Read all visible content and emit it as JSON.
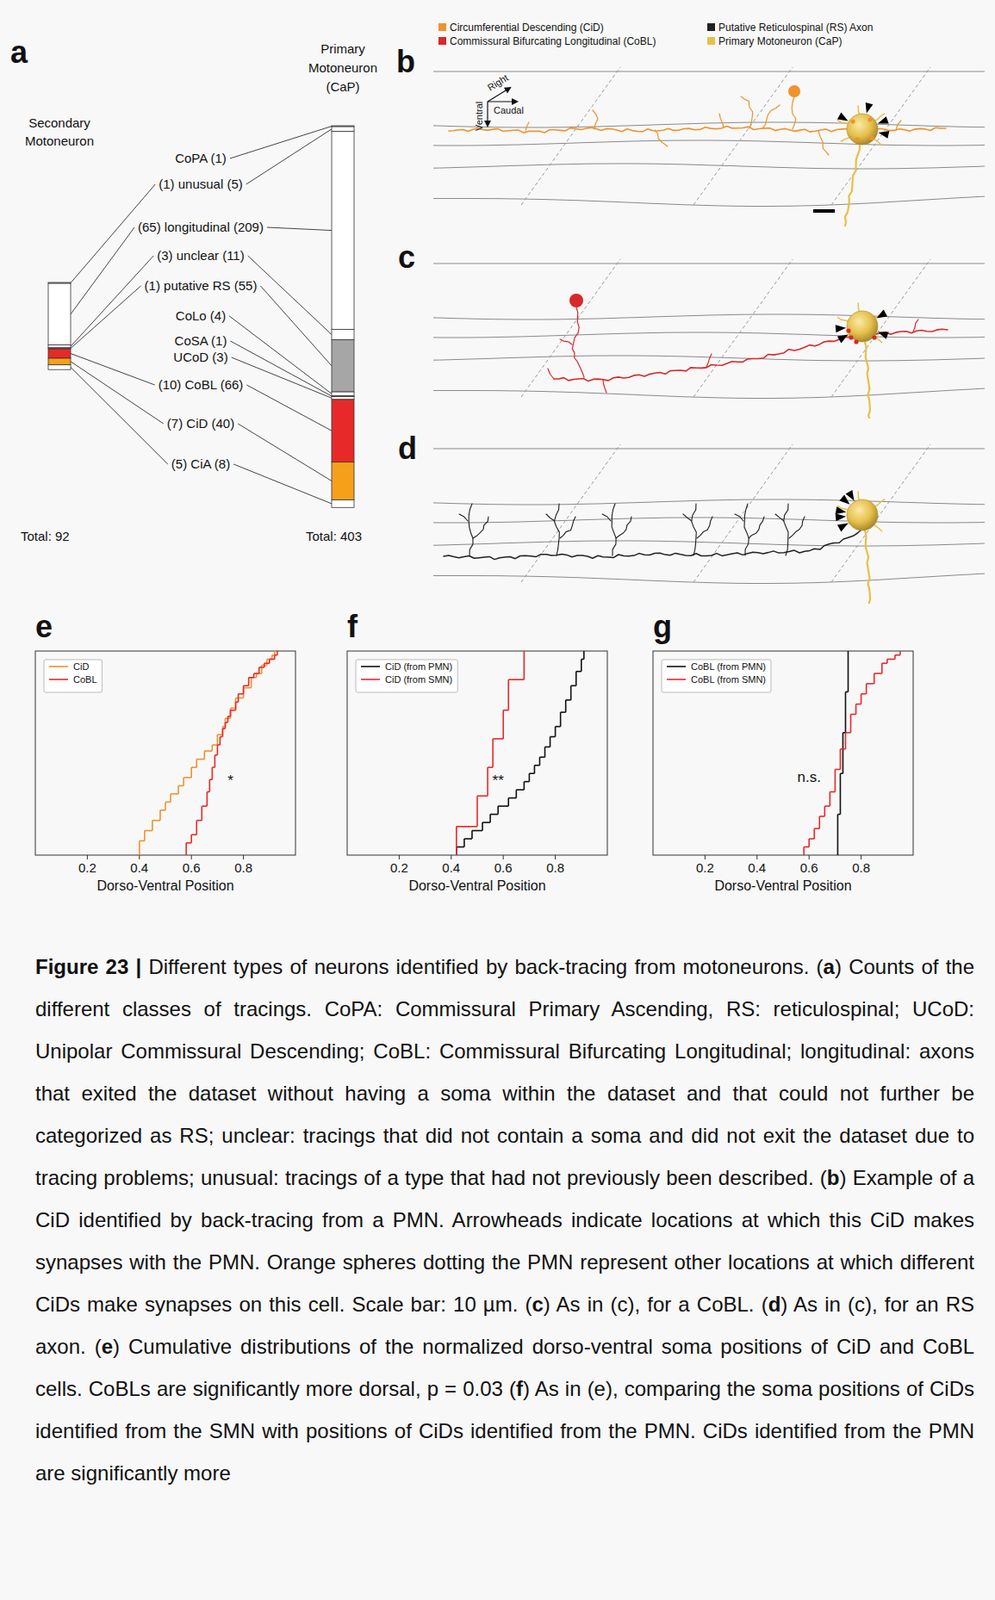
{
  "panel_letters": [
    "a",
    "b",
    "c",
    "d",
    "e",
    "f",
    "g"
  ],
  "panel_a": {
    "left_title": "Secondary Motoneuron",
    "right_title": "Primary Motoneuron (CaP)",
    "left_total": "Total: 92",
    "right_total": "Total: 403",
    "classes": [
      {
        "label": "CoPA (1)",
        "smn": null,
        "pmn": 1,
        "color": "#ffffff"
      },
      {
        "label": "(1) unusual (5)",
        "smn": 1,
        "pmn": 5,
        "color": "#ffffff"
      },
      {
        "label": "(65) longitudinal (209)",
        "smn": 65,
        "pmn": 209,
        "color": "#ffffff"
      },
      {
        "label": "(3) unclear (11)",
        "smn": 3,
        "pmn": 11,
        "color": "#ffffff"
      },
      {
        "label": "(1) putative RS (55)",
        "smn": 1,
        "pmn": 55,
        "color": "#a6a6a6"
      },
      {
        "label": "CoLo (4)",
        "smn": null,
        "pmn": 4,
        "color": "#ffffff"
      },
      {
        "label": "CoSA (1)",
        "smn": null,
        "pmn": 1,
        "color": "#ffffff"
      },
      {
        "label": "UCoD (3)",
        "smn": null,
        "pmn": 3,
        "color": "#ffffff"
      },
      {
        "label": "(10) CoBL (66)",
        "smn": 10,
        "pmn": 66,
        "color": "#e8292a"
      },
      {
        "label": "(7) CiD (40)",
        "smn": 7,
        "pmn": 40,
        "color": "#f6a01a"
      },
      {
        "label": "(5) CiA (8)",
        "smn": 5,
        "pmn": 8,
        "color": "#ffffff"
      }
    ]
  },
  "panel_b": {
    "legend_items": [
      {
        "name": "Circumferential Descending (CiD)",
        "color": "#f0922d"
      },
      {
        "name": "Commissural Bifurcating Longitudinal (CoBL)",
        "color": "#d8282a"
      },
      {
        "name": "Putative Reticulospinal (RS) Axon",
        "color": "#222222"
      },
      {
        "name": "Primary Motoneuron (CaP)",
        "color": "#e6c04a"
      }
    ],
    "compass": [
      "Right",
      "Caudal",
      "Ventral"
    ]
  },
  "chart_data": [
    {
      "type": "step",
      "x_label": "Dorso-Ventral Position",
      "xlim": [
        0,
        1
      ],
      "ylim": [
        0,
        1
      ],
      "xticks": [
        0.2,
        0.4,
        0.6,
        0.8
      ],
      "tick_labels": "x",
      "legend": "upper left",
      "series": [
        {
          "name": "CiD",
          "color": "#f0922d",
          "x": [
            0.4,
            0.42,
            0.45,
            0.48,
            0.5,
            0.52,
            0.55,
            0.57,
            0.6,
            0.62,
            0.65,
            0.68,
            0.7,
            0.72,
            0.73,
            0.75,
            0.77,
            0.8,
            0.83,
            0.85,
            0.87,
            0.89,
            0.91,
            0.92
          ],
          "values": [
            0.07,
            0.12,
            0.17,
            0.22,
            0.26,
            0.3,
            0.34,
            0.38,
            0.43,
            0.47,
            0.51,
            0.54,
            0.59,
            0.63,
            0.67,
            0.72,
            0.77,
            0.82,
            0.87,
            0.89,
            0.93,
            0.96,
            0.98,
            1.0
          ]
        },
        {
          "name": "CoBL",
          "color": "#e8292a",
          "x": [
            0.58,
            0.6,
            0.62,
            0.64,
            0.66,
            0.67,
            0.68,
            0.69,
            0.7,
            0.71,
            0.72,
            0.73,
            0.74,
            0.75,
            0.77,
            0.78,
            0.8,
            0.82,
            0.84,
            0.86,
            0.88,
            0.9,
            0.92,
            0.93
          ],
          "values": [
            0.06,
            0.1,
            0.17,
            0.24,
            0.31,
            0.37,
            0.43,
            0.49,
            0.54,
            0.58,
            0.62,
            0.65,
            0.68,
            0.71,
            0.75,
            0.79,
            0.83,
            0.87,
            0.89,
            0.92,
            0.94,
            0.96,
            0.98,
            1.0
          ]
        }
      ],
      "annotations": [
        {
          "text": "*",
          "x": 0.75,
          "y": 0.34
        }
      ]
    },
    {
      "type": "step",
      "x_label": "Dorso-Ventral Position",
      "xlim": [
        0,
        1
      ],
      "ylim": [
        0,
        1
      ],
      "xticks": [
        0.2,
        0.4,
        0.6,
        0.8
      ],
      "tick_labels": "x",
      "legend": "upper left",
      "series": [
        {
          "name": "CiD (from PMN)",
          "color": "#111111",
          "x": [
            0.42,
            0.45,
            0.48,
            0.52,
            0.55,
            0.58,
            0.62,
            0.65,
            0.68,
            0.7,
            0.72,
            0.74,
            0.76,
            0.78,
            0.8,
            0.82,
            0.84,
            0.86,
            0.88,
            0.9,
            0.91
          ],
          "values": [
            0.04,
            0.08,
            0.12,
            0.16,
            0.2,
            0.24,
            0.28,
            0.32,
            0.36,
            0.4,
            0.44,
            0.48,
            0.53,
            0.58,
            0.63,
            0.7,
            0.76,
            0.83,
            0.9,
            0.96,
            1.0
          ]
        },
        {
          "name": "CiD (from SMN)",
          "color": "#e8292a",
          "x": [
            0.42,
            0.5,
            0.54,
            0.56,
            0.6,
            0.62,
            0.68
          ],
          "values": [
            0.14,
            0.29,
            0.43,
            0.57,
            0.71,
            0.86,
            1.0
          ]
        }
      ],
      "annotations": [
        {
          "text": "**",
          "x": 0.58,
          "y": 0.34
        }
      ]
    },
    {
      "type": "step",
      "x_label": "Dorso-Ventral Position",
      "xlim": [
        0,
        1
      ],
      "ylim": [
        0,
        1
      ],
      "xticks": [
        0.2,
        0.4,
        0.6,
        0.8
      ],
      "tick_labels": "x",
      "legend": "upper left",
      "series": [
        {
          "name": "CoBL (from PMN)",
          "color": "#111111",
          "x": [
            0.71,
            0.72,
            0.73,
            0.74,
            0.75
          ],
          "values": [
            0.2,
            0.4,
            0.6,
            0.8,
            1.0
          ]
        },
        {
          "name": "CoBL (from SMN)",
          "color": "#e8292a",
          "x": [
            0.58,
            0.6,
            0.62,
            0.64,
            0.66,
            0.68,
            0.7,
            0.72,
            0.74,
            0.76,
            0.78,
            0.8,
            0.82,
            0.85,
            0.88,
            0.9,
            0.93,
            0.95
          ],
          "values": [
            0.04,
            0.08,
            0.13,
            0.19,
            0.24,
            0.31,
            0.42,
            0.52,
            0.6,
            0.69,
            0.74,
            0.79,
            0.84,
            0.89,
            0.94,
            0.96,
            0.98,
            1.0
          ]
        }
      ],
      "annotations": [
        {
          "text": "n.s.",
          "x": 0.6,
          "y": 0.36
        }
      ]
    }
  ],
  "caption": [
    {
      "text": "Figure 23 |",
      "bold": true
    },
    {
      "text": " Different types of neurons identified by back-tracing from motoneurons. ("
    },
    {
      "text": "a",
      "bold": true
    },
    {
      "text": ") Counts of the different classes of tracings. CoPA: Commissural Primary Ascending, RS: reticulospinal; UCoD: Unipolar Commissural Descending; CoBL: Commissural Bifurcating Longitudinal; longitudinal: axons that exited the dataset without having a soma within the dataset and that could not further be categorized as RS; unclear: tracings that did not contain a soma and did not exit the dataset due to tracing problems; unusual: tracings of a type that had not previously been described. ("
    },
    {
      "text": "b",
      "bold": true
    },
    {
      "text": ") Example of a CiD identified by back-tracing from a PMN. Arrowheads indicate locations at which this CiD makes synapses with the PMN. Orange spheres dotting the PMN represent other locations at which different CiDs make synapses on this cell. Scale bar: 10 µm. ("
    },
    {
      "text": "c",
      "bold": true
    },
    {
      "text": ") As in (c), for a CoBL. ("
    },
    {
      "text": "d",
      "bold": true
    },
    {
      "text": ") As in (c), for an RS axon. ("
    },
    {
      "text": "e",
      "bold": true
    },
    {
      "text": ") Cumulative distributions of the normalized dorso-ventral soma positions of CiD and CoBL cells. CoBLs are significantly more dorsal, p = 0.03 ("
    },
    {
      "text": "f",
      "bold": true
    },
    {
      "text": ") As in (e), comparing the soma positions of CiDs identified from the SMN with positions of CiDs identified from the PMN. CiDs identified from the PMN are significantly more"
    }
  ]
}
